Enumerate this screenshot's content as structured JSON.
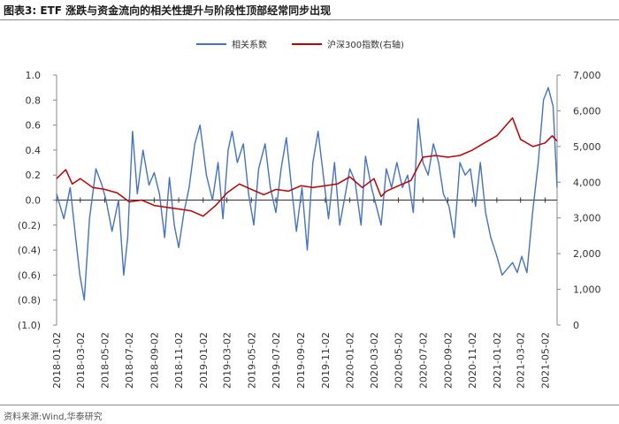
{
  "header": {
    "figure_label": "图表3:",
    "title": "ETF 涨跌与资金流向的相关性提升与阶段性顶部经常同步出现"
  },
  "footer": {
    "source": "资料来源:Wind,华泰研究"
  },
  "chart_data": {
    "type": "line",
    "legend_position": "top-center",
    "grid": false,
    "left_axis": {
      "range": [
        -1.0,
        1.0
      ],
      "ticks": [
        "1.0",
        "0.8",
        "0.6",
        "0.4",
        "0.2",
        "0.0",
        "(0.2)",
        "(0.4)",
        "(0.6)",
        "(0.8)",
        "(1.0)"
      ]
    },
    "right_axis": {
      "range": [
        0,
        7000
      ],
      "ticks": [
        "7,000",
        "6,000",
        "5,000",
        "4,000",
        "3,000",
        "2,000",
        "1,000",
        "0"
      ]
    },
    "x_ticks": [
      "2018-01-02",
      "2018-03-02",
      "2018-05-02",
      "2018-07-02",
      "2018-09-02",
      "2018-11-02",
      "2019-01-02",
      "2019-03-02",
      "2019-05-02",
      "2019-07-02",
      "2019-09-02",
      "2019-11-02",
      "2020-01-02",
      "2020-03-02",
      "2020-05-02",
      "2020-07-02",
      "2020-09-02",
      "2020-11-02",
      "2021-01-02",
      "2021-03-02",
      "2021-05-02"
    ],
    "series": [
      {
        "name": "相关系数",
        "axis": "left",
        "color": "#4472C4",
        "points": [
          [
            "2018-01-02",
            0.05
          ],
          [
            "2018-01-20",
            -0.15
          ],
          [
            "2018-02-05",
            0.1
          ],
          [
            "2018-02-20",
            -0.35
          ],
          [
            "2018-03-01",
            -0.6
          ],
          [
            "2018-03-12",
            -0.8
          ],
          [
            "2018-03-25",
            -0.15
          ],
          [
            "2018-04-10",
            0.25
          ],
          [
            "2018-04-25",
            0.12
          ],
          [
            "2018-05-05",
            0.0
          ],
          [
            "2018-05-20",
            -0.25
          ],
          [
            "2018-06-05",
            0.0
          ],
          [
            "2018-06-18",
            -0.6
          ],
          [
            "2018-06-28",
            -0.3
          ],
          [
            "2018-07-10",
            0.55
          ],
          [
            "2018-07-22",
            0.05
          ],
          [
            "2018-08-05",
            0.4
          ],
          [
            "2018-08-20",
            0.12
          ],
          [
            "2018-09-02",
            0.22
          ],
          [
            "2018-09-15",
            0.05
          ],
          [
            "2018-09-28",
            -0.3
          ],
          [
            "2018-10-10",
            0.18
          ],
          [
            "2018-10-22",
            -0.2
          ],
          [
            "2018-11-02",
            -0.38
          ],
          [
            "2018-11-15",
            -0.1
          ],
          [
            "2018-11-28",
            0.1
          ],
          [
            "2018-12-12",
            0.45
          ],
          [
            "2018-12-25",
            0.6
          ],
          [
            "2019-01-10",
            0.2
          ],
          [
            "2019-01-25",
            0.0
          ],
          [
            "2019-02-08",
            0.3
          ],
          [
            "2019-02-20",
            -0.15
          ],
          [
            "2019-03-05",
            0.4
          ],
          [
            "2019-03-15",
            0.55
          ],
          [
            "2019-03-28",
            0.3
          ],
          [
            "2019-04-12",
            0.45
          ],
          [
            "2019-04-25",
            0.05
          ],
          [
            "2019-05-08",
            -0.2
          ],
          [
            "2019-05-20",
            0.25
          ],
          [
            "2019-06-05",
            0.45
          ],
          [
            "2019-06-18",
            0.1
          ],
          [
            "2019-07-02",
            -0.1
          ],
          [
            "2019-07-15",
            0.25
          ],
          [
            "2019-07-28",
            0.5
          ],
          [
            "2019-08-10",
            0.1
          ],
          [
            "2019-08-22",
            -0.25
          ],
          [
            "2019-09-05",
            0.1
          ],
          [
            "2019-09-18",
            -0.4
          ],
          [
            "2019-10-02",
            0.3
          ],
          [
            "2019-10-15",
            0.55
          ],
          [
            "2019-10-28",
            0.2
          ],
          [
            "2019-11-10",
            -0.15
          ],
          [
            "2019-11-25",
            0.3
          ],
          [
            "2019-12-08",
            -0.2
          ],
          [
            "2019-12-22",
            0.05
          ],
          [
            "2020-01-02",
            0.25
          ],
          [
            "2020-01-15",
            0.15
          ],
          [
            "2020-01-30",
            -0.2
          ],
          [
            "2020-02-10",
            0.35
          ],
          [
            "2020-02-25",
            0.1
          ],
          [
            "2020-03-08",
            -0.05
          ],
          [
            "2020-03-20",
            -0.2
          ],
          [
            "2020-04-02",
            0.25
          ],
          [
            "2020-04-15",
            0.1
          ],
          [
            "2020-04-28",
            0.3
          ],
          [
            "2020-05-12",
            0.1
          ],
          [
            "2020-05-25",
            0.2
          ],
          [
            "2020-06-08",
            -0.1
          ],
          [
            "2020-06-20",
            0.65
          ],
          [
            "2020-07-02",
            0.3
          ],
          [
            "2020-07-15",
            0.2
          ],
          [
            "2020-07-28",
            0.45
          ],
          [
            "2020-08-10",
            0.3
          ],
          [
            "2020-08-22",
            0.05
          ],
          [
            "2020-09-05",
            -0.05
          ],
          [
            "2020-09-18",
            -0.3
          ],
          [
            "2020-10-02",
            0.3
          ],
          [
            "2020-10-15",
            0.2
          ],
          [
            "2020-10-28",
            0.25
          ],
          [
            "2020-11-10",
            -0.05
          ],
          [
            "2020-11-22",
            0.3
          ],
          [
            "2020-12-05",
            -0.1
          ],
          [
            "2020-12-18",
            -0.3
          ],
          [
            "2021-01-02",
            -0.45
          ],
          [
            "2021-01-15",
            -0.6
          ],
          [
            "2021-01-28",
            -0.55
          ],
          [
            "2021-02-10",
            -0.5
          ],
          [
            "2021-02-22",
            -0.58
          ],
          [
            "2021-03-05",
            -0.45
          ],
          [
            "2021-03-18",
            -0.58
          ],
          [
            "2021-04-01",
            -0.1
          ],
          [
            "2021-04-15",
            0.3
          ],
          [
            "2021-04-28",
            0.8
          ],
          [
            "2021-05-10",
            0.9
          ],
          [
            "2021-05-22",
            0.75
          ],
          [
            "2021-06-01",
            0.1
          ]
        ]
      },
      {
        "name": "沪深300指数(右轴)",
        "axis": "right",
        "color": "#C00000",
        "points": [
          [
            "2018-01-02",
            4100
          ],
          [
            "2018-01-25",
            4350
          ],
          [
            "2018-02-10",
            3950
          ],
          [
            "2018-03-02",
            4100
          ],
          [
            "2018-04-02",
            3850
          ],
          [
            "2018-05-02",
            3800
          ],
          [
            "2018-06-02",
            3700
          ],
          [
            "2018-07-02",
            3450
          ],
          [
            "2018-08-02",
            3500
          ],
          [
            "2018-09-02",
            3350
          ],
          [
            "2018-10-02",
            3300
          ],
          [
            "2018-11-02",
            3250
          ],
          [
            "2018-12-02",
            3200
          ],
          [
            "2019-01-02",
            3050
          ],
          [
            "2019-02-02",
            3350
          ],
          [
            "2019-03-02",
            3700
          ],
          [
            "2019-04-02",
            3950
          ],
          [
            "2019-05-02",
            3800
          ],
          [
            "2019-06-02",
            3650
          ],
          [
            "2019-07-02",
            3800
          ],
          [
            "2019-08-02",
            3750
          ],
          [
            "2019-09-02",
            3900
          ],
          [
            "2019-10-02",
            3850
          ],
          [
            "2019-11-02",
            3900
          ],
          [
            "2019-12-02",
            3950
          ],
          [
            "2020-01-02",
            4150
          ],
          [
            "2020-02-02",
            3850
          ],
          [
            "2020-03-02",
            4100
          ],
          [
            "2020-03-20",
            3600
          ],
          [
            "2020-04-02",
            3750
          ],
          [
            "2020-05-02",
            3900
          ],
          [
            "2020-06-02",
            4050
          ],
          [
            "2020-07-02",
            4700
          ],
          [
            "2020-08-02",
            4750
          ],
          [
            "2020-09-02",
            4700
          ],
          [
            "2020-10-02",
            4750
          ],
          [
            "2020-11-02",
            4900
          ],
          [
            "2020-12-02",
            5100
          ],
          [
            "2021-01-02",
            5300
          ],
          [
            "2021-02-10",
            5800
          ],
          [
            "2021-03-02",
            5200
          ],
          [
            "2021-04-02",
            5000
          ],
          [
            "2021-05-02",
            5100
          ],
          [
            "2021-05-20",
            5300
          ],
          [
            "2021-06-01",
            5150
          ]
        ]
      }
    ]
  }
}
